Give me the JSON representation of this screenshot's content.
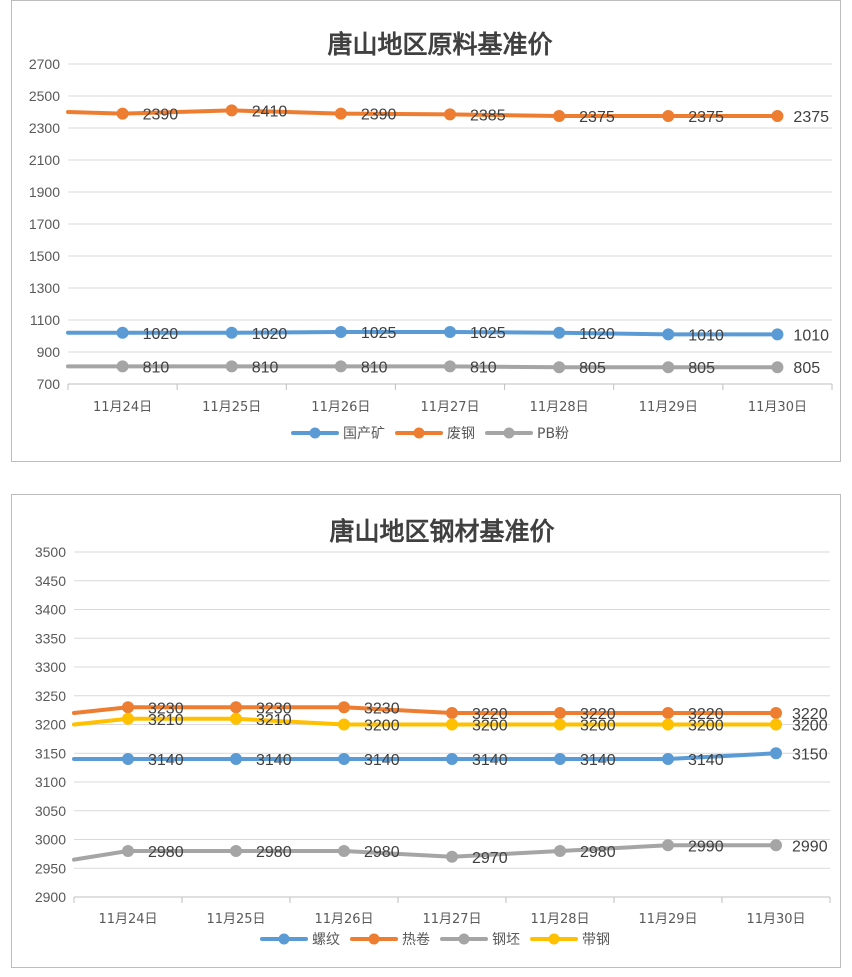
{
  "chart_data": [
    {
      "type": "line",
      "title": "唐山地区原料基准价",
      "categories": [
        "11月24日",
        "11月25日",
        "11月26日",
        "11月27日",
        "11月28日",
        "11月29日",
        "11月30日"
      ],
      "ylim": [
        700,
        2700
      ],
      "yticks": [
        700,
        900,
        1100,
        1300,
        1500,
        1700,
        1900,
        2100,
        2300,
        2500,
        2700
      ],
      "grid": true,
      "legend": "bottom",
      "series": [
        {
          "name": "国产矿",
          "color": "#5b9bd5",
          "start": 1020,
          "values": [
            1020,
            1020,
            1025,
            1025,
            1020,
            1010,
            1010
          ]
        },
        {
          "name": "废钢",
          "color": "#ed7d31",
          "start": 2400,
          "values": [
            2390,
            2410,
            2390,
            2385,
            2375,
            2375,
            2375
          ]
        },
        {
          "name": "PB粉",
          "color": "#a5a5a5",
          "start": 810,
          "values": [
            810,
            810,
            810,
            810,
            805,
            805,
            805
          ]
        }
      ]
    },
    {
      "type": "line",
      "title": "唐山地区钢材基准价",
      "categories": [
        "11月24日",
        "11月25日",
        "11月26日",
        "11月27日",
        "11月28日",
        "11月29日",
        "11月30日"
      ],
      "ylim": [
        2900,
        3500
      ],
      "yticks": [
        2900,
        2950,
        3000,
        3050,
        3100,
        3150,
        3200,
        3250,
        3300,
        3350,
        3400,
        3450,
        3500
      ],
      "grid": true,
      "legend": "bottom",
      "series": [
        {
          "name": "螺纹",
          "color": "#5b9bd5",
          "start": 3140,
          "values": [
            3140,
            3140,
            3140,
            3140,
            3140,
            3140,
            3150
          ]
        },
        {
          "name": "热卷",
          "color": "#ed7d31",
          "start": 3220,
          "values": [
            3230,
            3230,
            3230,
            3220,
            3220,
            3220,
            3220
          ]
        },
        {
          "name": "钢坯",
          "color": "#a5a5a5",
          "start": 2965,
          "values": [
            2980,
            2980,
            2980,
            2970,
            2980,
            2990,
            2990
          ]
        },
        {
          "name": "带钢",
          "color": "#ffc000",
          "start": 3200,
          "values": [
            3210,
            3210,
            3200,
            3200,
            3200,
            3200,
            3200
          ]
        }
      ]
    }
  ]
}
